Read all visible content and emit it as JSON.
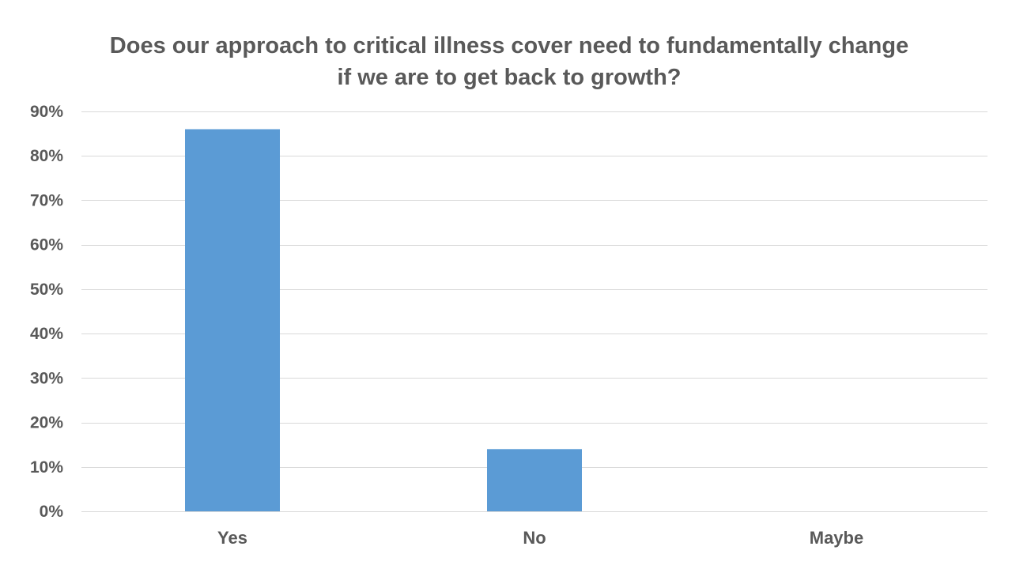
{
  "chart_data": {
    "type": "bar",
    "title": [
      "Does our approach to critical illness cover need to fundamentally change",
      "if we are to get back to growth?"
    ],
    "categories": [
      "Yes",
      "No",
      "Maybe"
    ],
    "values": [
      86,
      14,
      0
    ],
    "ylim": [
      0,
      90
    ],
    "yticks": [
      "0%",
      "10%",
      "20%",
      "30%",
      "40%",
      "50%",
      "60%",
      "70%",
      "80%",
      "90%"
    ],
    "xlabel": "",
    "ylabel": "",
    "grid": true,
    "legend": "none",
    "bar_color": "#5b9bd5"
  }
}
